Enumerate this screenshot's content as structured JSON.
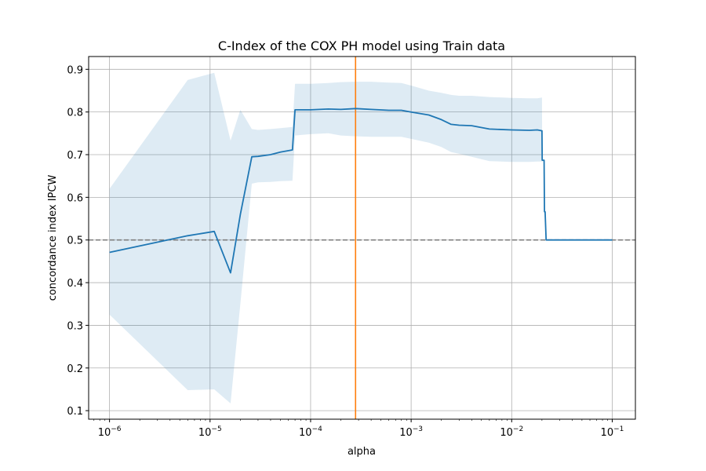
{
  "chart_data": {
    "type": "line",
    "title": "C-Index of the COX PH model using Train data",
    "xlabel": "alpha",
    "ylabel": "concordance index IPCW",
    "xscale": "log",
    "xlim": [
      6.2e-07,
      0.17
    ],
    "ylim": [
      0.08,
      0.93
    ],
    "grid": true,
    "x_ticks": [
      {
        "value": 1e-06,
        "base": "10",
        "exp": "−6"
      },
      {
        "value": 1e-05,
        "base": "10",
        "exp": "−5"
      },
      {
        "value": 0.0001,
        "base": "10",
        "exp": "−4"
      },
      {
        "value": 0.001,
        "base": "10",
        "exp": "−3"
      },
      {
        "value": 0.01,
        "base": "10",
        "exp": "−2"
      },
      {
        "value": 0.1,
        "base": "10",
        "exp": "−1"
      }
    ],
    "y_ticks": [
      {
        "value": 0.1,
        "label": "0.1"
      },
      {
        "value": 0.2,
        "label": "0.2"
      },
      {
        "value": 0.3,
        "label": "0.3"
      },
      {
        "value": 0.4,
        "label": "0.4"
      },
      {
        "value": 0.5,
        "label": "0.5"
      },
      {
        "value": 0.6,
        "label": "0.6"
      },
      {
        "value": 0.7,
        "label": "0.7"
      },
      {
        "value": 0.8,
        "label": "0.8"
      },
      {
        "value": 0.9,
        "label": "0.9"
      }
    ],
    "series": [
      {
        "color": "#1f77b4",
        "band_color": "#1f77b4",
        "x": [
          1e-06,
          6e-06,
          1.1e-05,
          1.6e-05,
          2e-05,
          2.6e-05,
          3e-05,
          4e-05,
          5e-05,
          6.6e-05,
          7e-05,
          0.0001,
          0.00015,
          0.0002,
          0.00028,
          0.0004,
          0.0006,
          0.0008,
          0.001,
          0.0015,
          0.002,
          0.0025,
          0.003,
          0.004,
          0.006,
          0.01,
          0.015,
          0.018,
          0.02,
          0.0201,
          0.021,
          0.0212,
          0.0215,
          0.022,
          0.03,
          0.05,
          0.1
        ],
        "y": [
          0.471,
          0.51,
          0.52,
          0.423,
          0.56,
          0.695,
          0.696,
          0.7,
          0.706,
          0.711,
          0.805,
          0.805,
          0.807,
          0.806,
          0.808,
          0.806,
          0.804,
          0.804,
          0.8,
          0.793,
          0.782,
          0.771,
          0.769,
          0.768,
          0.76,
          0.758,
          0.757,
          0.758,
          0.756,
          0.687,
          0.687,
          0.566,
          0.566,
          0.5,
          0.5,
          0.5,
          0.5
        ],
        "lower": [
          0.325,
          0.148,
          0.15,
          0.117,
          0.35,
          0.632,
          0.635,
          0.636,
          0.638,
          0.639,
          0.745,
          0.748,
          0.75,
          0.745,
          0.743,
          0.742,
          0.742,
          0.742,
          0.737,
          0.728,
          0.718,
          0.706,
          0.702,
          0.695,
          0.685,
          0.683,
          0.683,
          0.684,
          0.684,
          0.684,
          0.684,
          0.566,
          0.566,
          0.5,
          0.5,
          0.5,
          0.5
        ],
        "upper": [
          0.62,
          0.875,
          0.892,
          0.733,
          0.805,
          0.76,
          0.758,
          0.76,
          0.762,
          0.765,
          0.866,
          0.866,
          0.868,
          0.87,
          0.871,
          0.871,
          0.869,
          0.868,
          0.862,
          0.85,
          0.845,
          0.84,
          0.838,
          0.838,
          0.835,
          0.833,
          0.832,
          0.832,
          0.834,
          0.687,
          0.687,
          0.566,
          0.566,
          0.5,
          0.5,
          0.5,
          0.5
        ]
      }
    ],
    "reference_lines": [
      {
        "orientation": "horizontal",
        "value": 0.5,
        "color": "#808080",
        "style": "dashed"
      },
      {
        "orientation": "vertical",
        "value": 0.00028,
        "color": "#ff7f0e",
        "style": "solid"
      }
    ]
  }
}
